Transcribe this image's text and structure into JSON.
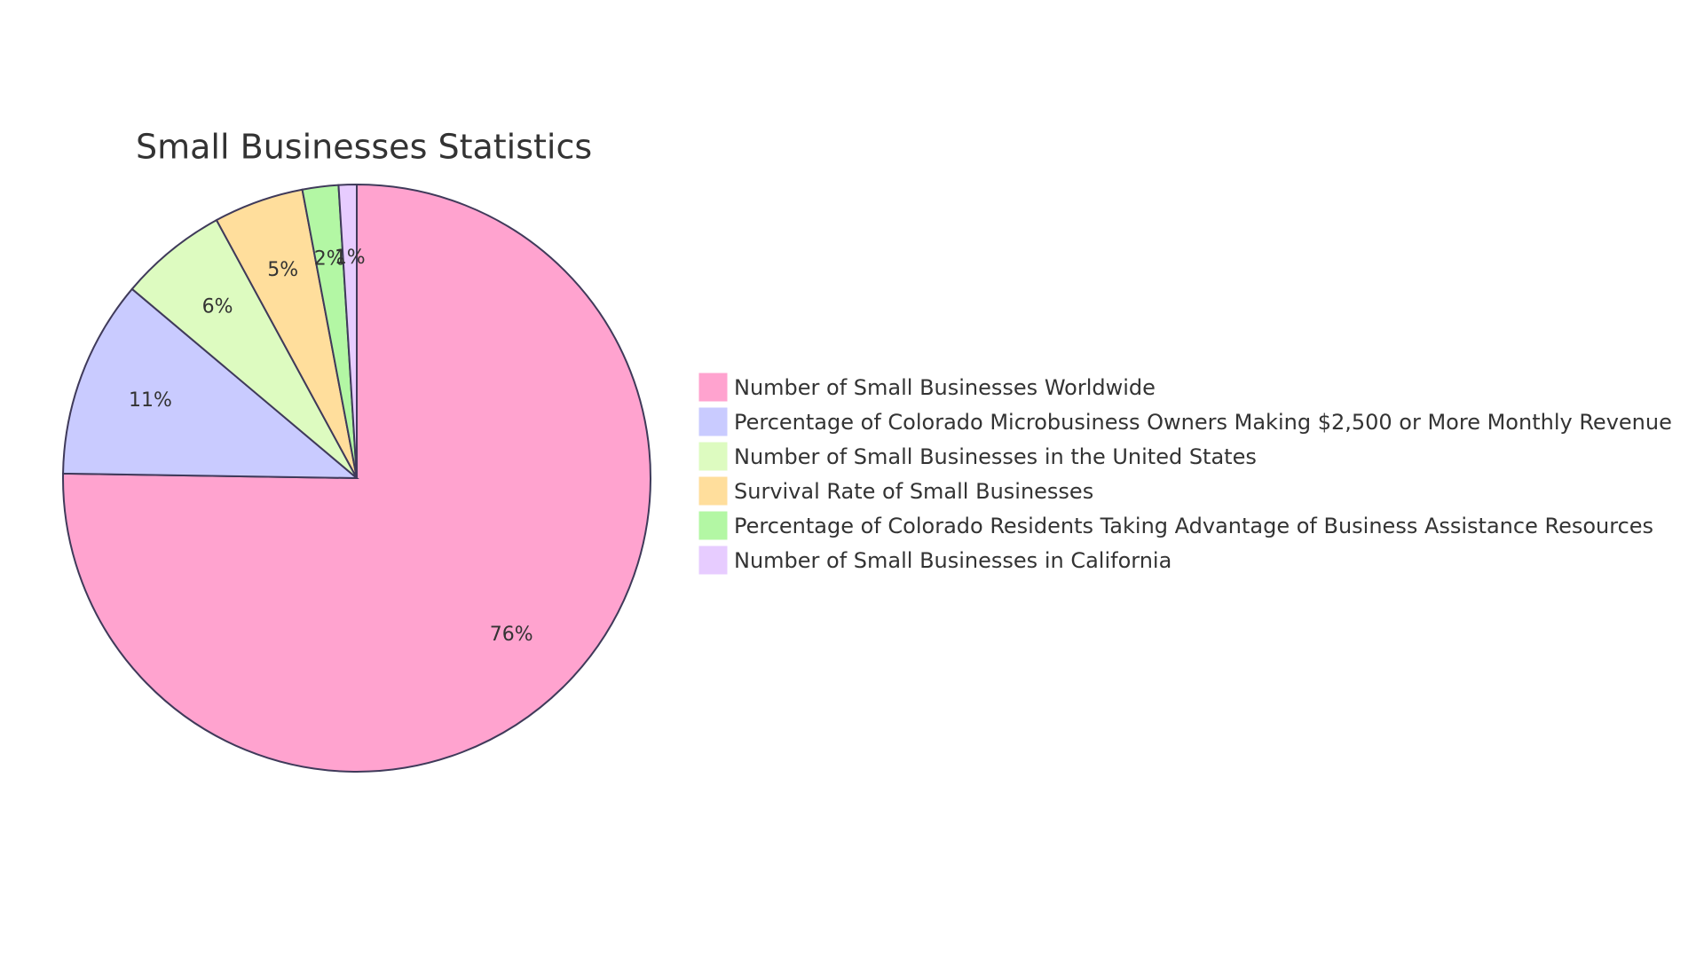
{
  "chart_data": {
    "type": "pie",
    "title": "Small Businesses Statistics",
    "categories": [
      "Number of Small Businesses Worldwide",
      "Percentage of Colorado Microbusiness Owners Making $2,500 or More Monthly Revenue",
      "Number of Small Businesses in the United States",
      "Survival Rate of Small Businesses",
      "Percentage of Colorado Residents Taking Advantage of Business Assistance Resources",
      "Number of Small Businesses in California"
    ],
    "values": [
      76,
      11,
      6,
      5,
      2,
      1
    ],
    "value_labels": [
      "76%",
      "11%",
      "6%",
      "5%",
      "2%",
      "1%"
    ],
    "colors": [
      "#ffa3cf",
      "#c9cbff",
      "#ddfbc0",
      "#ffde9c",
      "#b3f7a4",
      "#e7ccff"
    ],
    "legend": "right"
  }
}
